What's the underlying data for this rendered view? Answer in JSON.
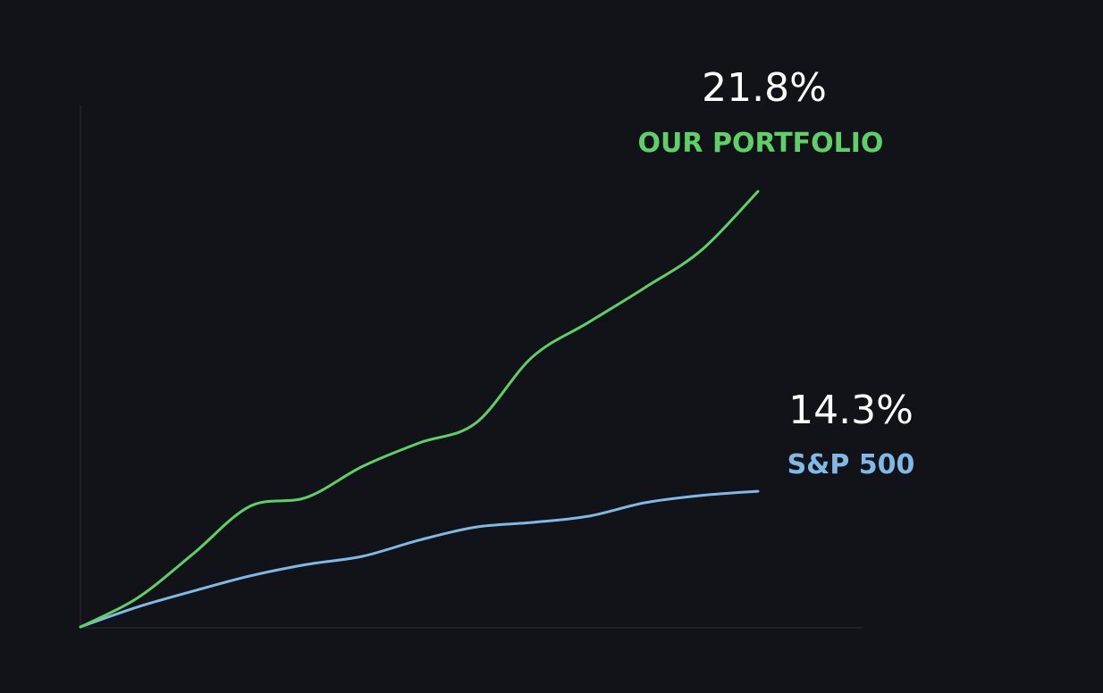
{
  "chart_data": {
    "type": "line",
    "categories": [
      null,
      null,
      null,
      null,
      null,
      null,
      null,
      null,
      null,
      null,
      null,
      null,
      null
    ],
    "ylim": [
      0,
      100
    ],
    "series": [
      {
        "name": "OUR PORTFOLIO",
        "color": "#5fd068",
        "values": [
          0,
          5.5,
          14.1,
          23.2,
          24.9,
          30.9,
          35.4,
          39.2,
          51.9,
          58.6,
          65.3,
          72.5,
          83.8
        ]
      },
      {
        "name": "S&P 500",
        "color": "#7fb9e6",
        "values": [
          0,
          3.8,
          6.9,
          9.8,
          12.0,
          13.6,
          16.7,
          19.2,
          20.1,
          21.3,
          23.9,
          25.3,
          26.1
        ]
      }
    ],
    "annotations": [
      {
        "text": "21.8%"
      },
      {
        "text": "14.3%"
      }
    ]
  }
}
